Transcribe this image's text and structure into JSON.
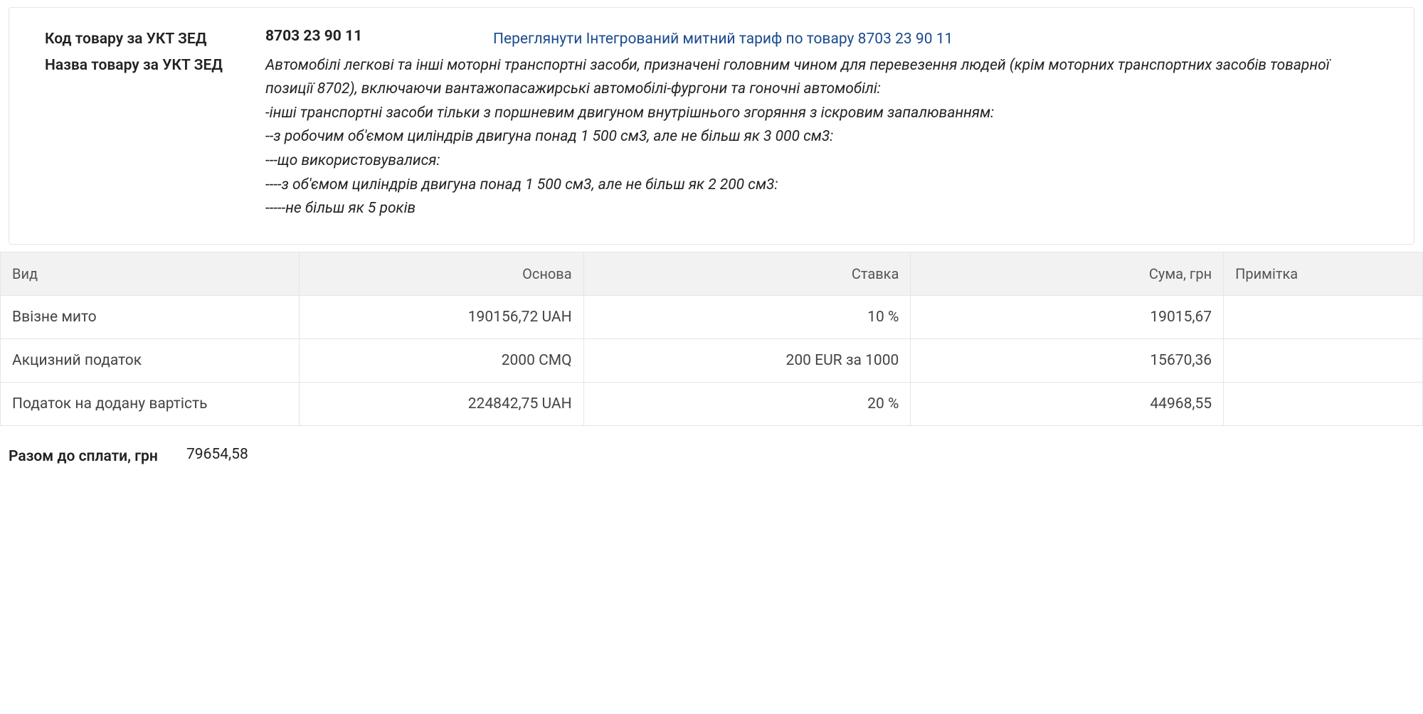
{
  "info": {
    "code_label": "Код товару за УКТ ЗЕД",
    "code_value": "8703 23 90 11",
    "tariff_link_text": "Переглянути Інтегрований митний тариф по товару 8703 23 90 11",
    "name_label": "Назва товару за УКТ ЗЕД",
    "desc_lines": [
      "Автомобілі легкові та інші моторні транспортні засоби, призначені головним чином для перевезення людей (крім моторних транспортних засобів товарної позиції 8702), включаючи вантажопасажирські автомобілі-фургони та гоночні автомобілі:",
      "-інші транспортні засоби тільки з поршневим двигуном внутрішнього згоряння з іскровим запалюванням:",
      "--з робочим об'ємом циліндрів двигуна понад 1 500 см3, але не більш як 3 000 см3:",
      "---що використовувалися:",
      "----з об'ємом циліндрів двигуна понад 1 500 см3, але не більш як 2 200 см3:",
      "-----не більш як 5 років"
    ]
  },
  "table": {
    "headers": {
      "type": "Вид",
      "base": "Основа",
      "rate": "Ставка",
      "sum": "Сума, грн",
      "note": "Примітка"
    },
    "rows": [
      {
        "type": "Ввізне мито",
        "base": "190156,72 UAH",
        "rate": "10 %",
        "sum": "19015,67",
        "note": ""
      },
      {
        "type": "Акцизний податок",
        "base": "2000 CMQ",
        "rate": "200 EUR за 1000",
        "sum": "15670,36",
        "note": ""
      },
      {
        "type": "Податок на додану вартість",
        "base": "224842,75 UAH",
        "rate": "20 %",
        "sum": "44968,55",
        "note": ""
      }
    ]
  },
  "total": {
    "label": "Разом до сплати, грн",
    "value": "79654,58"
  },
  "colors": {
    "border": "#e5e5e5",
    "header_bg": "#f2f2f2",
    "text": "#333",
    "link": "#1a4b8c"
  }
}
